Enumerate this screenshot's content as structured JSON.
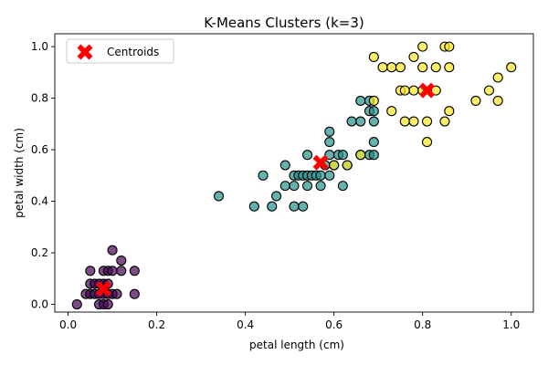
{
  "chart_data": {
    "type": "scatter",
    "title": "K-Means Clusters (k=3)",
    "xlabel": "petal length (cm)",
    "ylabel": "petal width (cm)",
    "xlim": [
      -0.03,
      1.05
    ],
    "ylim": [
      -0.03,
      1.05
    ],
    "xticks": [
      0.0,
      0.2,
      0.4,
      0.6,
      0.8,
      1.0
    ],
    "yticks": [
      0.0,
      0.2,
      0.4,
      0.6,
      0.8,
      1.0
    ],
    "tick_labels_x": [
      "0.0",
      "0.2",
      "0.4",
      "0.6",
      "0.8",
      "1.0"
    ],
    "tick_labels_y": [
      "0.0",
      "0.2",
      "0.4",
      "0.6",
      "0.8",
      "1.0"
    ],
    "grid": false,
    "legend": {
      "position": "top-left",
      "entries": [
        "Centroids"
      ]
    },
    "colors": {
      "cluster_0": "#440154",
      "cluster_1": "#21918c",
      "cluster_2": "#fde725",
      "centroid": "#ff0000",
      "point_edge": "#000000",
      "point_alpha": 0.7
    },
    "series": [
      {
        "cluster": 0,
        "points": [
          [
            0.02,
            0.0
          ],
          [
            0.04,
            0.04
          ],
          [
            0.05,
            0.04
          ],
          [
            0.05,
            0.08
          ],
          [
            0.05,
            0.13
          ],
          [
            0.06,
            0.04
          ],
          [
            0.06,
            0.08
          ],
          [
            0.07,
            0.0
          ],
          [
            0.07,
            0.04
          ],
          [
            0.07,
            0.08
          ],
          [
            0.08,
            0.0
          ],
          [
            0.08,
            0.04
          ],
          [
            0.08,
            0.08
          ],
          [
            0.08,
            0.13
          ],
          [
            0.09,
            0.0
          ],
          [
            0.09,
            0.04
          ],
          [
            0.09,
            0.08
          ],
          [
            0.09,
            0.13
          ],
          [
            0.1,
            0.04
          ],
          [
            0.1,
            0.13
          ],
          [
            0.1,
            0.21
          ],
          [
            0.11,
            0.04
          ],
          [
            0.12,
            0.13
          ],
          [
            0.12,
            0.17
          ],
          [
            0.15,
            0.04
          ],
          [
            0.15,
            0.13
          ]
        ]
      },
      {
        "cluster": 1,
        "points": [
          [
            0.34,
            0.42
          ],
          [
            0.42,
            0.38
          ],
          [
            0.44,
            0.5
          ],
          [
            0.46,
            0.38
          ],
          [
            0.47,
            0.42
          ],
          [
            0.49,
            0.46
          ],
          [
            0.49,
            0.54
          ],
          [
            0.51,
            0.38
          ],
          [
            0.51,
            0.46
          ],
          [
            0.51,
            0.5
          ],
          [
            0.52,
            0.5
          ],
          [
            0.53,
            0.38
          ],
          [
            0.53,
            0.5
          ],
          [
            0.54,
            0.46
          ],
          [
            0.54,
            0.5
          ],
          [
            0.54,
            0.58
          ],
          [
            0.55,
            0.5
          ],
          [
            0.56,
            0.5
          ],
          [
            0.57,
            0.46
          ],
          [
            0.57,
            0.5
          ],
          [
            0.58,
            0.54
          ],
          [
            0.59,
            0.5
          ],
          [
            0.59,
            0.58
          ],
          [
            0.59,
            0.63
          ],
          [
            0.59,
            0.67
          ],
          [
            0.6,
            0.54
          ],
          [
            0.61,
            0.58
          ],
          [
            0.62,
            0.46
          ],
          [
            0.62,
            0.58
          ],
          [
            0.63,
            0.54
          ],
          [
            0.64,
            0.71
          ],
          [
            0.66,
            0.58
          ],
          [
            0.66,
            0.71
          ],
          [
            0.66,
            0.79
          ],
          [
            0.68,
            0.58
          ],
          [
            0.68,
            0.75
          ],
          [
            0.68,
            0.79
          ],
          [
            0.69,
            0.58
          ],
          [
            0.69,
            0.63
          ],
          [
            0.69,
            0.71
          ],
          [
            0.69,
            0.75
          ]
        ]
      },
      {
        "cluster": 2,
        "points": [
          [
            0.6,
            0.54
          ],
          [
            0.63,
            0.54
          ],
          [
            0.66,
            0.58
          ],
          [
            0.69,
            0.79
          ],
          [
            0.69,
            0.96
          ],
          [
            0.71,
            0.92
          ],
          [
            0.73,
            0.75
          ],
          [
            0.73,
            0.92
          ],
          [
            0.75,
            0.83
          ],
          [
            0.75,
            0.92
          ],
          [
            0.76,
            0.71
          ],
          [
            0.76,
            0.83
          ],
          [
            0.78,
            0.71
          ],
          [
            0.78,
            0.83
          ],
          [
            0.78,
            0.96
          ],
          [
            0.8,
            0.83
          ],
          [
            0.8,
            0.92
          ],
          [
            0.8,
            1.0
          ],
          [
            0.81,
            0.63
          ],
          [
            0.81,
            0.71
          ],
          [
            0.83,
            0.83
          ],
          [
            0.83,
            0.92
          ],
          [
            0.85,
            0.71
          ],
          [
            0.85,
            1.0
          ],
          [
            0.86,
            0.75
          ],
          [
            0.86,
            0.92
          ],
          [
            0.86,
            1.0
          ],
          [
            0.92,
            0.79
          ],
          [
            0.95,
            0.83
          ],
          [
            0.97,
            0.79
          ],
          [
            0.97,
            0.88
          ],
          [
            1.0,
            0.92
          ]
        ]
      }
    ],
    "centroids": [
      [
        0.08,
        0.06
      ],
      [
        0.57,
        0.55
      ],
      [
        0.81,
        0.83
      ]
    ]
  }
}
